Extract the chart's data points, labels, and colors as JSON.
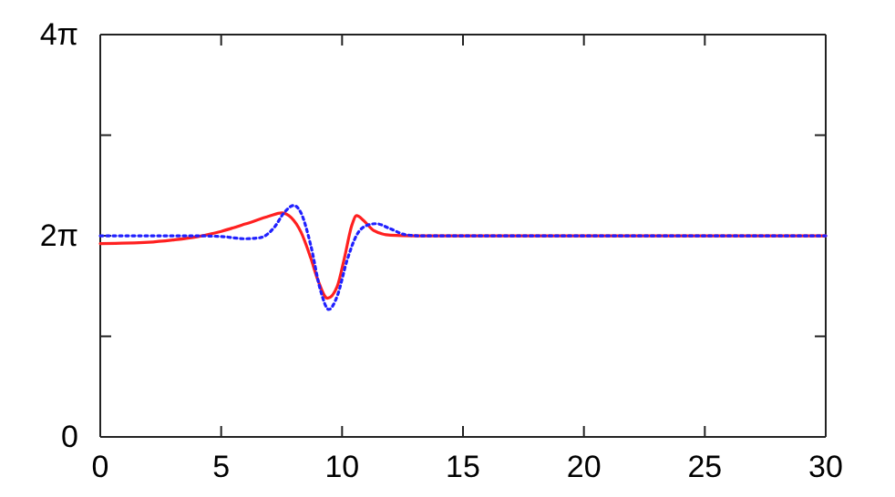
{
  "chart_data": {
    "type": "line",
    "xlim": [
      0,
      30
    ],
    "ylim": [
      0,
      12.5664
    ],
    "xticks": [
      0,
      5,
      10,
      15,
      20,
      25,
      30
    ],
    "yticks": [
      0,
      {
        "value": 3.14159,
        "label": null
      },
      {
        "value": 6.28319,
        "label": "2π"
      },
      {
        "value": 9.42478,
        "label": null
      },
      {
        "value": 12.5664,
        "label": "4π"
      }
    ],
    "grid": false,
    "series": [
      {
        "color": "#ff2020",
        "line_style": "solid",
        "x": [
          0,
          2,
          3,
          4,
          5,
          6,
          7,
          7.5,
          7.9,
          8.3,
          8.7,
          9,
          9.4,
          9.8,
          10.1,
          10.4,
          10.6,
          10.9,
          11.3,
          12,
          13,
          30
        ],
        "values": [
          6.04,
          6.08,
          6.15,
          6.25,
          6.42,
          6.65,
          6.9,
          7,
          6.85,
          6.4,
          5.6,
          4.9,
          4.33,
          4.7,
          5.6,
          6.6,
          6.91,
          6.75,
          6.45,
          6.3,
          6.28,
          6.28
        ]
      },
      {
        "color": "#2020ff",
        "line_style": "dotted",
        "x": [
          0,
          4,
          5,
          6,
          6.6,
          7.2,
          7.6,
          8,
          8.3,
          8.7,
          9.1,
          9.45,
          9.8,
          10.2,
          10.6,
          11,
          11.4,
          12,
          12.6,
          13.3,
          30
        ],
        "values": [
          6.28,
          6.28,
          6.26,
          6.19,
          6.22,
          6.55,
          7,
          7.23,
          7,
          6,
          4.6,
          3.98,
          4.4,
          5.5,
          6.3,
          6.6,
          6.66,
          6.5,
          6.32,
          6.28,
          6.28
        ]
      }
    ]
  }
}
